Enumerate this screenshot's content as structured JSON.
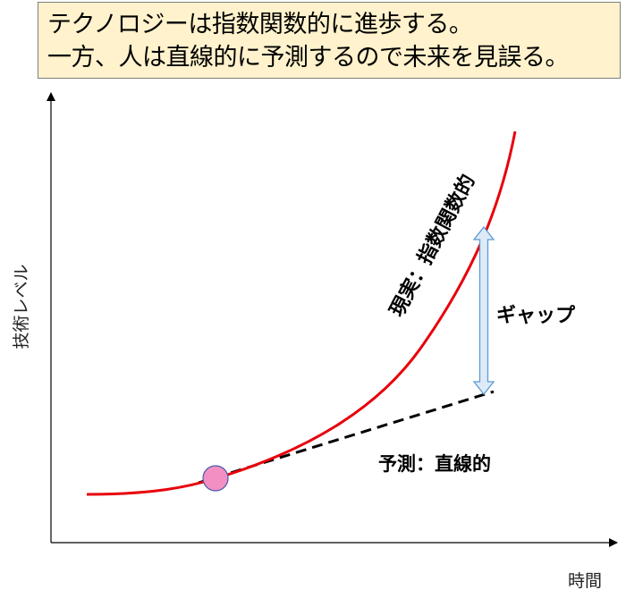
{
  "title": {
    "line1": "テクノロジーは指数関数的に進歩する。",
    "line2": "一方、人は直線的に予測するので未来を見誤る。"
  },
  "axes": {
    "y_label": "技術レベル",
    "x_label": "時間"
  },
  "annotations": {
    "reality": "現実：指数関数的",
    "gap": "ギャップ",
    "prediction": "予測：直線的"
  },
  "colors": {
    "title_fill": "#fff2cc",
    "reality_curve": "#e8000b",
    "prediction_line": "#000000",
    "marker_fill": "#f48fc4",
    "gap_arrow_fill": "#deebf7",
    "gap_arrow_stroke": "#5b9bd5"
  }
}
